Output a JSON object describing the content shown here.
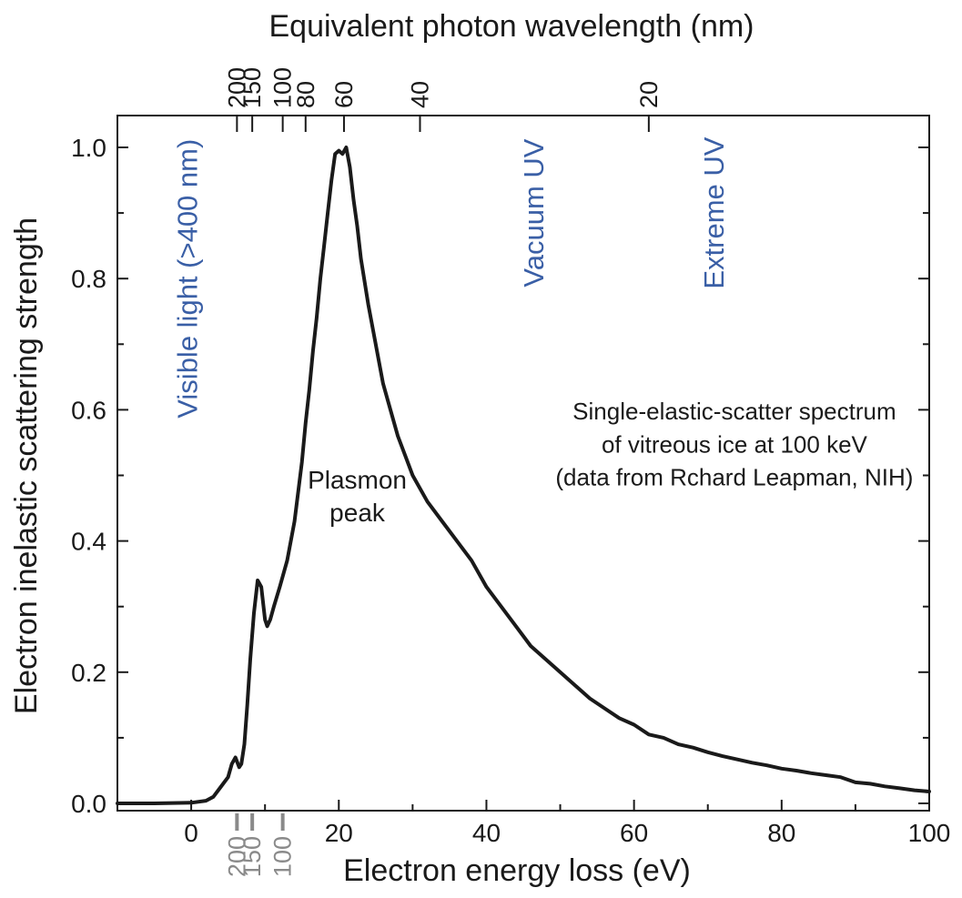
{
  "chart_data": {
    "type": "line",
    "title": "",
    "xlabel": "Electron energy loss (eV)",
    "ylabel": "Electron inelastic scattering strength",
    "top_axis_label": "Equivalent photon wavelength (nm)",
    "xlim": [
      -10,
      100
    ],
    "ylim": [
      0.0,
      1.05
    ],
    "x_ticks": [
      0,
      20,
      40,
      60,
      80,
      100
    ],
    "x_tick_labels": [
      "0",
      "20",
      "40",
      "60",
      "80",
      "100"
    ],
    "y_ticks": [
      0.0,
      0.2,
      0.4,
      0.6,
      0.8,
      1.0
    ],
    "y_tick_labels": [
      "0.0",
      "0.2",
      "0.4",
      "0.6",
      "0.8",
      "1.0"
    ],
    "top_ticks": [
      {
        "label": "200",
        "energy_ev": 6.2
      },
      {
        "label": "150",
        "energy_ev": 8.27
      },
      {
        "label": "100",
        "energy_ev": 12.4
      },
      {
        "label": "80",
        "energy_ev": 15.5
      },
      {
        "label": "60",
        "energy_ev": 20.7
      },
      {
        "label": "40",
        "energy_ev": 31.0
      },
      {
        "label": "20",
        "energy_ev": 62.0
      }
    ],
    "bottom_gray_markers": [
      {
        "label": "200",
        "energy_ev": 6.2
      },
      {
        "label": "150",
        "energy_ev": 8.27
      },
      {
        "label": "100",
        "energy_ev": 12.4
      }
    ],
    "grid": false,
    "series": [
      {
        "name": "",
        "color": "#1a1a1a",
        "x": [
          -10,
          -5,
          0,
          2,
          3,
          4,
          5,
          5.5,
          6,
          6.5,
          6.8,
          7.2,
          7.6,
          8,
          8.5,
          9,
          9.5,
          10,
          10.3,
          10.7,
          11.2,
          12,
          13,
          14,
          15,
          15.5,
          16,
          16.5,
          17,
          17.5,
          18,
          18.5,
          19,
          19.5,
          20,
          20.5,
          21,
          21.5,
          22,
          22.5,
          23,
          24,
          25,
          26,
          27,
          28,
          29,
          30,
          32,
          34,
          36,
          38,
          40,
          42,
          44,
          46,
          48,
          50,
          52,
          54,
          56,
          58,
          60,
          62,
          64,
          66,
          68,
          70,
          72,
          74,
          76,
          78,
          80,
          82,
          84,
          86,
          88,
          90,
          92,
          94,
          96,
          98,
          100
        ],
        "y": [
          0.0,
          0.0,
          0.001,
          0.004,
          0.01,
          0.025,
          0.04,
          0.06,
          0.07,
          0.055,
          0.06,
          0.09,
          0.15,
          0.22,
          0.29,
          0.34,
          0.33,
          0.28,
          0.27,
          0.28,
          0.3,
          0.33,
          0.37,
          0.43,
          0.52,
          0.58,
          0.63,
          0.69,
          0.74,
          0.8,
          0.85,
          0.9,
          0.95,
          0.99,
          0.995,
          0.99,
          1.0,
          0.97,
          0.92,
          0.88,
          0.83,
          0.76,
          0.7,
          0.64,
          0.6,
          0.56,
          0.53,
          0.5,
          0.46,
          0.43,
          0.4,
          0.37,
          0.33,
          0.3,
          0.27,
          0.24,
          0.22,
          0.2,
          0.18,
          0.16,
          0.145,
          0.13,
          0.12,
          0.105,
          0.1,
          0.09,
          0.085,
          0.078,
          0.072,
          0.067,
          0.062,
          0.058,
          0.053,
          0.05,
          0.046,
          0.043,
          0.04,
          0.032,
          0.03,
          0.026,
          0.023,
          0.02,
          0.018
        ]
      }
    ],
    "annotations": [
      {
        "id": "visible",
        "text": "Visible light (>400 nm)",
        "color": "#3a5fa6",
        "x": 0.8,
        "y": 0.8,
        "rotation": -90
      },
      {
        "id": "vacuum",
        "text": "Vacuum UV",
        "color": "#3a5fa6",
        "x": 47.7,
        "y": 0.9,
        "rotation": -90
      },
      {
        "id": "extreme",
        "text": "Extreme UV",
        "color": "#3a5fa6",
        "x": 72.1,
        "y": 0.9,
        "rotation": -90
      },
      {
        "id": "plasmon1",
        "text": "Plasmon",
        "color": "#1a1a1a",
        "x": 22.5,
        "y": 0.48,
        "rotation": 0
      },
      {
        "id": "plasmon2",
        "text": "peak",
        "color": "#1a1a1a",
        "x": 22.5,
        "y": 0.43,
        "rotation": 0
      },
      {
        "id": "note1",
        "text": "Single-elastic-scatter spectrum",
        "color": "#1a1a1a",
        "x": 73.6,
        "y": 0.585,
        "rotation": 0
      },
      {
        "id": "note2",
        "text": "of vitreous ice at 100 keV",
        "color": "#1a1a1a",
        "x": 73.6,
        "y": 0.535,
        "rotation": 0
      },
      {
        "id": "note3",
        "text": "(data from Rchard Leapman, NIH)",
        "color": "#1a1a1a",
        "x": 73.6,
        "y": 0.485,
        "rotation": 0
      }
    ]
  }
}
